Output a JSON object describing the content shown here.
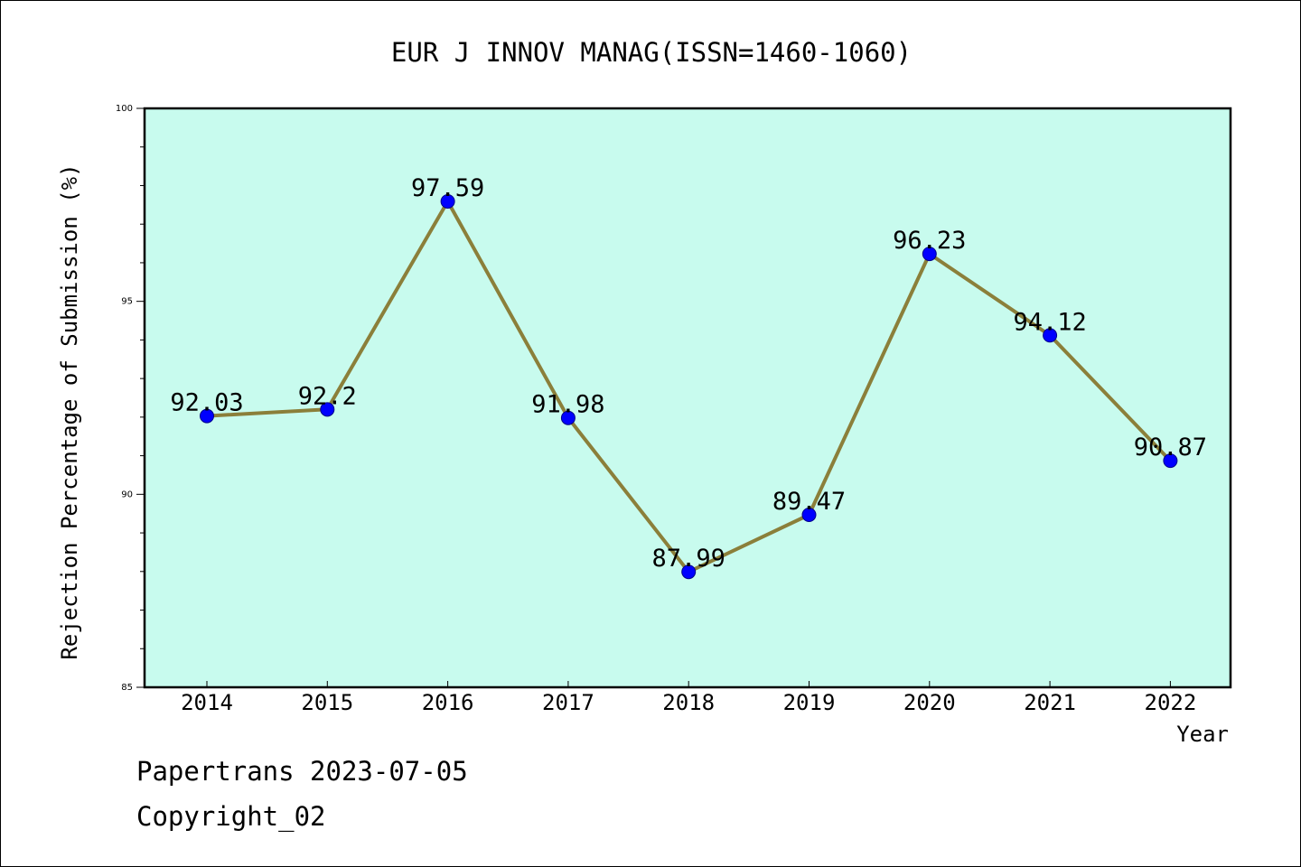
{
  "colors": {
    "plot_background": "#c8fbee",
    "line": "#8b7f3a",
    "marker": "#0000ff",
    "axis": "#000000"
  },
  "footer": {
    "line1": "Papertrans 2023-07-05",
    "line2": "Copyright_02"
  },
  "chart_data": {
    "type": "line",
    "title": "EUR J INNOV MANAG(ISSN=1460-1060)",
    "xlabel": "Year",
    "ylabel": "Rejection Percentage of Submission (%)",
    "categories": [
      "2014",
      "2015",
      "2016",
      "2017",
      "2018",
      "2019",
      "2020",
      "2021",
      "2022"
    ],
    "series": [
      {
        "values": [
          92.03,
          92.2,
          97.59,
          91.98,
          87.99,
          89.47,
          96.23,
          94.12,
          90.87
        ],
        "data_labels": [
          "92.03",
          "92.2",
          "97.59",
          "91.98",
          "87.99",
          "89.47",
          "96.23",
          "94.12",
          "90.87"
        ]
      }
    ],
    "ylim": [
      85,
      100
    ],
    "y_major_ticks": [
      "85",
      "90",
      "95",
      "100"
    ],
    "y_minor_step": 1,
    "grid": false,
    "legend": "none"
  }
}
